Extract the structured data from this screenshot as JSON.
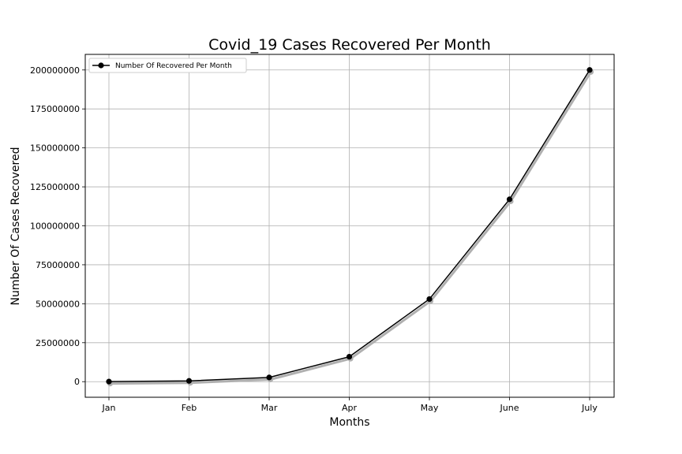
{
  "chart_data": {
    "type": "line",
    "title": "Covid_19 Cases Recovered Per Month",
    "xlabel": "Months",
    "ylabel": "Number Of Cases Recovered",
    "categories": [
      "Jan",
      "Feb",
      "Mar",
      "Apr",
      "May",
      "June",
      "July"
    ],
    "series": [
      {
        "name": "Number Of Recovered Per Month",
        "values": [
          50000,
          500000,
          2700000,
          16000000,
          53000000,
          117000000,
          200000000
        ],
        "color": "#000000",
        "marker": "circle",
        "shadow_color": "#b0b0b0"
      }
    ],
    "ylim": [
      -10000000,
      210000000
    ],
    "yticks": [
      0,
      25000000,
      50000000,
      75000000,
      100000000,
      125000000,
      150000000,
      175000000,
      200000000
    ],
    "ytick_labels": [
      "0",
      "25000000",
      "50000000",
      "75000000",
      "100000000",
      "125000000",
      "150000000",
      "175000000",
      "200000000"
    ],
    "grid": true,
    "legend_position": "upper-left"
  }
}
